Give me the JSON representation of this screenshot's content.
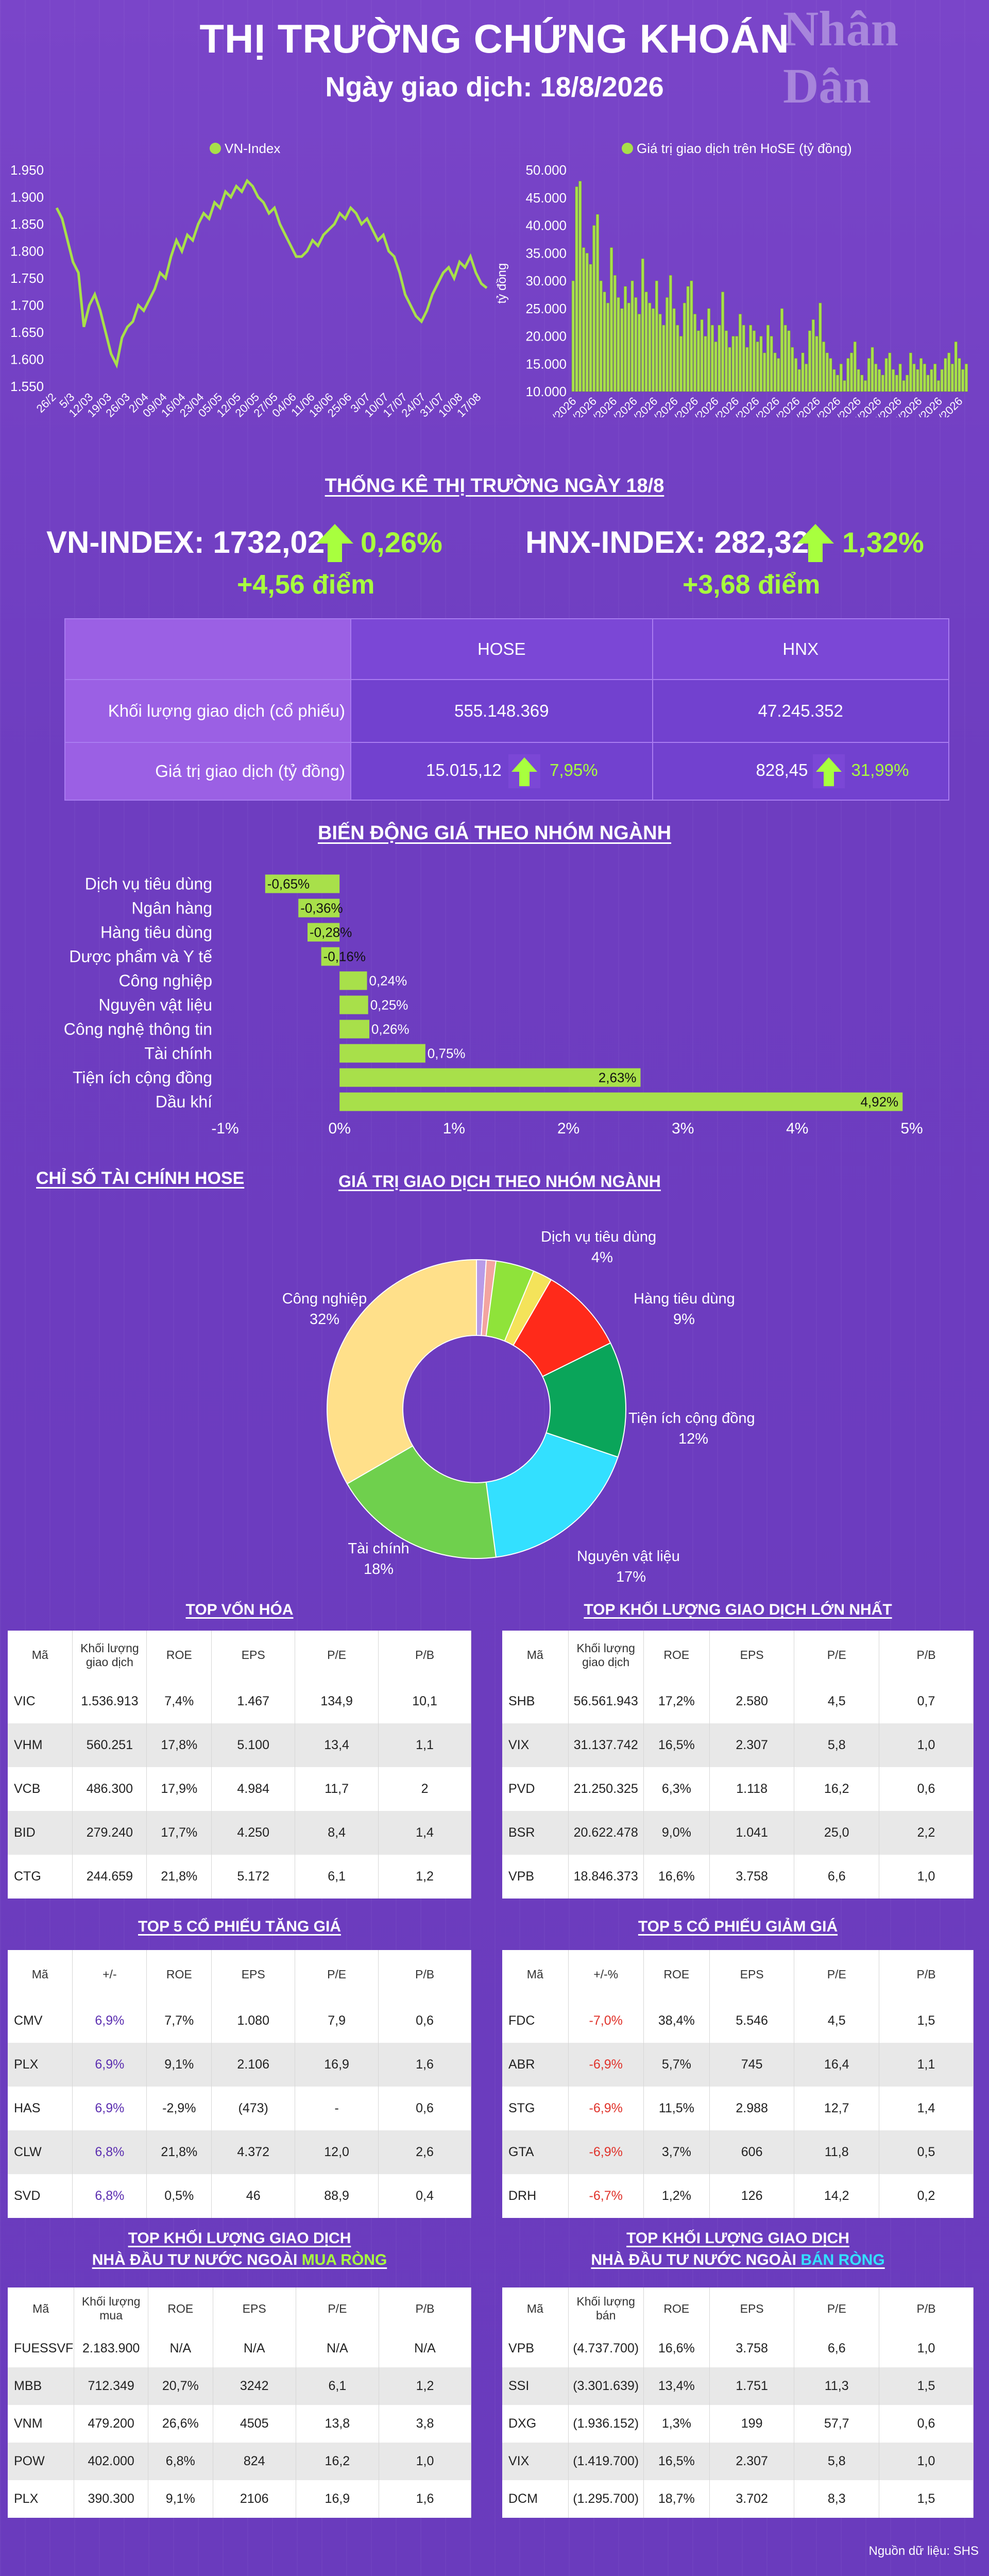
{
  "header": {
    "title": "THỊ TRƯỜNG CHỨNG KHOÁN",
    "subtitle": "Ngày giao dịch: 18/8/2026",
    "logo": "Nhân Dân"
  },
  "colors": {
    "background": "#6f3fbf",
    "accent_green": "#a8ff3e",
    "bar_green": "#a8e04a",
    "neg_red": "#e0322a"
  },
  "chart_data": [
    {
      "type": "line",
      "legend": "VN-Index",
      "legend_position": "top",
      "ylim": [
        1550,
        1950
      ],
      "yticks": [
        "1.550",
        "1.600",
        "1.650",
        "1.700",
        "1.750",
        "1.800",
        "1.850",
        "1.900",
        "1.950"
      ],
      "xticks": [
        "26/2",
        "5/3",
        "12/03",
        "19/03",
        "26/03",
        "2/04",
        "09/04",
        "16/04",
        "23/04",
        "05/05",
        "12/05",
        "20/05",
        "27/05",
        "04/06",
        "11/06",
        "18/06",
        "25/06",
        "3/07",
        "10/07",
        "17/07",
        "24/07",
        "31/07",
        "10/08",
        "17/08"
      ],
      "y": [
        1880,
        1860,
        1820,
        1780,
        1760,
        1660,
        1700,
        1720,
        1690,
        1650,
        1610,
        1590,
        1640,
        1660,
        1670,
        1700,
        1690,
        1710,
        1730,
        1760,
        1750,
        1790,
        1820,
        1800,
        1830,
        1820,
        1850,
        1870,
        1860,
        1890,
        1880,
        1910,
        1900,
        1920,
        1910,
        1930,
        1920,
        1900,
        1890,
        1870,
        1880,
        1850,
        1830,
        1810,
        1790,
        1790,
        1800,
        1820,
        1810,
        1830,
        1840,
        1850,
        1870,
        1860,
        1880,
        1870,
        1850,
        1860,
        1840,
        1820,
        1830,
        1800,
        1790,
        1760,
        1720,
        1700,
        1680,
        1670,
        1690,
        1720,
        1740,
        1760,
        1770,
        1750,
        1780,
        1770,
        1790,
        1760,
        1740,
        1732
      ]
    },
    {
      "type": "bar",
      "legend": "Giá trị giao dịch trên HoSE (tỷ đồng)",
      "ylabel": "tỷ đồng",
      "ylim": [
        10000,
        50000
      ],
      "yticks": [
        "10.000",
        "15.000",
        "20.000",
        "25.000",
        "30.000",
        "35.000",
        "40.000",
        "45.000",
        "50.000"
      ],
      "xticks": [
        "26/2/2026",
        "6/3/2026",
        "16/3/2026",
        "24/3/2026",
        "1/4/2026",
        "9/4/2026",
        "17/4/2026",
        "28/4/2026",
        "8/5/2026",
        "18/5/2026",
        "26/5/2026",
        "3/6/2026",
        "11/6/2026",
        "19/6/2026",
        "30/6/2026",
        "8/7/2026",
        "16/7/2026",
        "24/7/2026",
        "3/8/2026",
        "12/8/2026"
      ],
      "values": [
        30000,
        47000,
        48000,
        36000,
        35000,
        33000,
        40000,
        42000,
        30000,
        28000,
        26000,
        36000,
        31000,
        27000,
        25000,
        29000,
        26000,
        30000,
        27000,
        24000,
        34000,
        28000,
        26000,
        25000,
        30000,
        24000,
        22000,
        27000,
        31000,
        25000,
        22000,
        20000,
        26000,
        29000,
        30000,
        24000,
        21000,
        23000,
        20000,
        25000,
        22000,
        19000,
        22000,
        28000,
        21000,
        18000,
        20000,
        20000,
        24000,
        22000,
        18000,
        22000,
        21000,
        19000,
        20000,
        17000,
        22000,
        20000,
        17000,
        16000,
        25000,
        22000,
        21000,
        18000,
        16000,
        14000,
        17000,
        15000,
        21000,
        23000,
        20000,
        26000,
        19000,
        17000,
        16000,
        14000,
        13000,
        15000,
        12000,
        16000,
        17000,
        19000,
        14000,
        13000,
        12000,
        16000,
        18000,
        15000,
        14000,
        13000,
        16000,
        17000,
        14000,
        13000,
        15000,
        12000,
        13000,
        17000,
        15000,
        14000,
        16000,
        15000,
        13000,
        14000,
        15000,
        12000,
        14000,
        16000,
        17000,
        15000,
        19000,
        16000,
        14000,
        15000
      ]
    },
    {
      "type": "bar",
      "orientation": "horizontal",
      "title": "BIẾN ĐỘNG GIÁ THEO NHÓM NGÀNH",
      "categories": [
        "Dịch vụ tiêu dùng",
        "Ngân hàng",
        "Hàng tiêu dùng",
        "Dược phẩm và Y tế",
        "Công nghiệp",
        "Nguyên vật liệu",
        "Công nghệ thông tin",
        "Tài chính",
        "Tiện ích cộng đồng",
        "Dầu khí"
      ],
      "values": [
        -0.65,
        -0.36,
        -0.28,
        -0.16,
        0.24,
        0.25,
        0.26,
        0.75,
        2.63,
        4.92
      ],
      "labels": [
        "-0,65%",
        "-0,36%",
        "-0,28%",
        "-0,16%",
        "0,24%",
        "0,25%",
        "0,26%",
        "0,75%",
        "2,63%",
        "4,92%"
      ],
      "xlim": [
        -1,
        5
      ],
      "xticks": [
        "-1%",
        "0%",
        "1%",
        "2%",
        "3%",
        "4%",
        "5%"
      ]
    },
    {
      "type": "pie",
      "title": "GIÁ TRỊ GIAO DỊCH THEO NHÓM NGÀNH",
      "slices": [
        {
          "name": "",
          "value": 1,
          "color": "#b89be8",
          "label": ""
        },
        {
          "name": "",
          "value": 1,
          "color": "#f3a4a0",
          "label": ""
        },
        {
          "name": "Dịch vụ tiêu dùng",
          "value": 4,
          "color": "#8fe33a",
          "label": "4%"
        },
        {
          "name": "",
          "value": 2,
          "color": "#f4e35a",
          "label": ""
        },
        {
          "name": "Hàng tiêu dùng",
          "value": 9,
          "color": "#ff2a1a",
          "label": "9%"
        },
        {
          "name": "Tiện ích cộng đồng",
          "value": 12,
          "color": "#0aa55a",
          "label": "12%"
        },
        {
          "name": "Nguyên vật liệu",
          "value": 17,
          "color": "#33e0ff",
          "label": "17%"
        },
        {
          "name": "Tài chính",
          "value": 18,
          "color": "#6fd04d",
          "label": "18%"
        },
        {
          "name": "Công nghiệp",
          "value": 32,
          "color": "#ffe08a",
          "label": "32%"
        }
      ]
    }
  ],
  "stats": {
    "section_title": "THỐNG KÊ THỊ TRƯỜNG NGÀY 18/8",
    "vn_index": "VN-INDEX: 1732,02",
    "vn_change_pct": "0,26%",
    "vn_change_pts": "+4,56 điểm",
    "hnx_index": "HNX-INDEX: 282,32",
    "hnx_change_pct": "1,32%",
    "hnx_change_pts": "+3,68 điểm",
    "col_hose": "HOSE",
    "col_hnx": "HNX",
    "row_volume": "Khối lượng giao dịch (cổ phiếu)",
    "row_value": "Giá trị giao dịch (tỷ đồng)",
    "hose_volume": "555.148.369",
    "hnx_volume": "47.245.352",
    "hose_value": "15.015,12",
    "hose_value_pct": "7,95%",
    "hnx_value": "828,45",
    "hnx_value_pct": "31,99%"
  },
  "sections": {
    "finance_title": "CHỈ SỐ TÀI CHÍNH HOSE"
  },
  "tables": {
    "top_cap": {
      "title": "TOP VỐN HÓA",
      "headers": [
        "Mã",
        "Khối lượng giao dịch",
        "ROE",
        "EPS",
        "P/E",
        "P/B"
      ],
      "rows": [
        [
          "VIC",
          "1.536.913",
          "7,4%",
          "1.467",
          "134,9",
          "10,1"
        ],
        [
          "VHM",
          "560.251",
          "17,8%",
          "5.100",
          "13,4",
          "1,1"
        ],
        [
          "VCB",
          "486.300",
          "17,9%",
          "4.984",
          "11,7",
          "2"
        ],
        [
          "BID",
          "279.240",
          "17,7%",
          "4.250",
          "8,4",
          "1,4"
        ],
        [
          "CTG",
          "244.659",
          "21,8%",
          "5.172",
          "6,1",
          "1,2"
        ]
      ]
    },
    "top_volume": {
      "title": "TOP KHỐI LƯỢNG GIAO DỊCH LỚN NHẤT",
      "headers": [
        "Mã",
        "Khối lượng giao dịch",
        "ROE",
        "EPS",
        "P/E",
        "P/B"
      ],
      "rows": [
        [
          "SHB",
          "56.561.943",
          "17,2%",
          "2.580",
          "4,5",
          "0,7"
        ],
        [
          "VIX",
          "31.137.742",
          "16,5%",
          "2.307",
          "5,8",
          "1,0"
        ],
        [
          "PVD",
          "21.250.325",
          "6,3%",
          "1.118",
          "16,2",
          "0,6"
        ],
        [
          "BSR",
          "20.622.478",
          "9,0%",
          "1.041",
          "25,0",
          "2,2"
        ],
        [
          "VPB",
          "18.846.373",
          "16,6%",
          "3.758",
          "6,6",
          "1,0"
        ]
      ]
    },
    "top_gainers": {
      "title": "TOP 5 CỔ PHIẾU TĂNG GIÁ",
      "headers": [
        "Mã",
        "+/-",
        "ROE",
        "EPS",
        "P/E",
        "P/B"
      ],
      "rows": [
        [
          "CMV",
          "6,9%",
          "7,7%",
          "1.080",
          "7,9",
          "0,6"
        ],
        [
          "PLX",
          "6,9%",
          "9,1%",
          "2.106",
          "16,9",
          "1,6"
        ],
        [
          "HAS",
          "6,9%",
          "-2,9%",
          "(473)",
          "-",
          "0,6"
        ],
        [
          "CLW",
          "6,8%",
          "21,8%",
          "4.372",
          "12,0",
          "2,6"
        ],
        [
          "SVD",
          "6,8%",
          "0,5%",
          "46",
          "88,9",
          "0,4"
        ]
      ]
    },
    "top_losers": {
      "title": "TOP 5 CỔ PHIẾU GIẢM GIÁ",
      "headers": [
        "Mã",
        "+/-%",
        "ROE",
        "EPS",
        "P/E",
        "P/B"
      ],
      "rows": [
        [
          "FDC",
          "-7,0%",
          "38,4%",
          "5.546",
          "4,5",
          "1,5"
        ],
        [
          "ABR",
          "-6,9%",
          "5,7%",
          "745",
          "16,4",
          "1,1"
        ],
        [
          "STG",
          "-6,9%",
          "11,5%",
          "2.988",
          "12,7",
          "1,4"
        ],
        [
          "GTA",
          "-6,9%",
          "3,7%",
          "606",
          "11,8",
          "0,5"
        ],
        [
          "DRH",
          "-6,7%",
          "1,2%",
          "126",
          "14,2",
          "0,2"
        ]
      ]
    },
    "foreign_buy": {
      "title_line1": "TOP KHỐI LƯỢNG GIAO DỊCH",
      "title_line2_a": "NHÀ ĐẦU TƯ NƯỚC NGOÀI ",
      "title_line2_b": "MUA RÒNG",
      "headers": [
        "Mã",
        "Khối lượng mua",
        "ROE",
        "EPS",
        "P/E",
        "P/B"
      ],
      "rows": [
        [
          "FUESSVF",
          "2.183.900",
          "N/A",
          "N/A",
          "N/A",
          "N/A"
        ],
        [
          "MBB",
          "712.349",
          "20,7%",
          "3242",
          "6,1",
          "1,2"
        ],
        [
          "VNM",
          "479.200",
          "26,6%",
          "4505",
          "13,8",
          "3,8"
        ],
        [
          "POW",
          "402.000",
          "6,8%",
          "824",
          "16,2",
          "1,0"
        ],
        [
          "PLX",
          "390.300",
          "9,1%",
          "2106",
          "16,9",
          "1,6"
        ]
      ]
    },
    "foreign_sell": {
      "title_line1": "TOP KHỐI LƯỢNG GIAO DỊCH",
      "title_line2_a": "NHÀ ĐẦU TƯ NƯỚC NGOÀI ",
      "title_line2_b": "BÁN RÒNG",
      "headers": [
        "Mã",
        "Khối lượng bán",
        "ROE",
        "EPS",
        "P/E",
        "P/B"
      ],
      "rows": [
        [
          "VPB",
          "(4.737.700)",
          "16,6%",
          "3.758",
          "6,6",
          "1,0"
        ],
        [
          "SSI",
          "(3.301.639)",
          "13,4%",
          "1.751",
          "11,3",
          "1,5"
        ],
        [
          "DXG",
          "(1.936.152)",
          "1,3%",
          "199",
          "57,7",
          "0,6"
        ],
        [
          "VIX",
          "(1.419.700)",
          "16,5%",
          "2.307",
          "5,8",
          "1,0"
        ],
        [
          "DCM",
          "(1.295.700)",
          "18,7%",
          "3.702",
          "8,3",
          "1,5"
        ]
      ]
    }
  },
  "footer": {
    "source": "Nguồn dữ liệu: SHS"
  }
}
